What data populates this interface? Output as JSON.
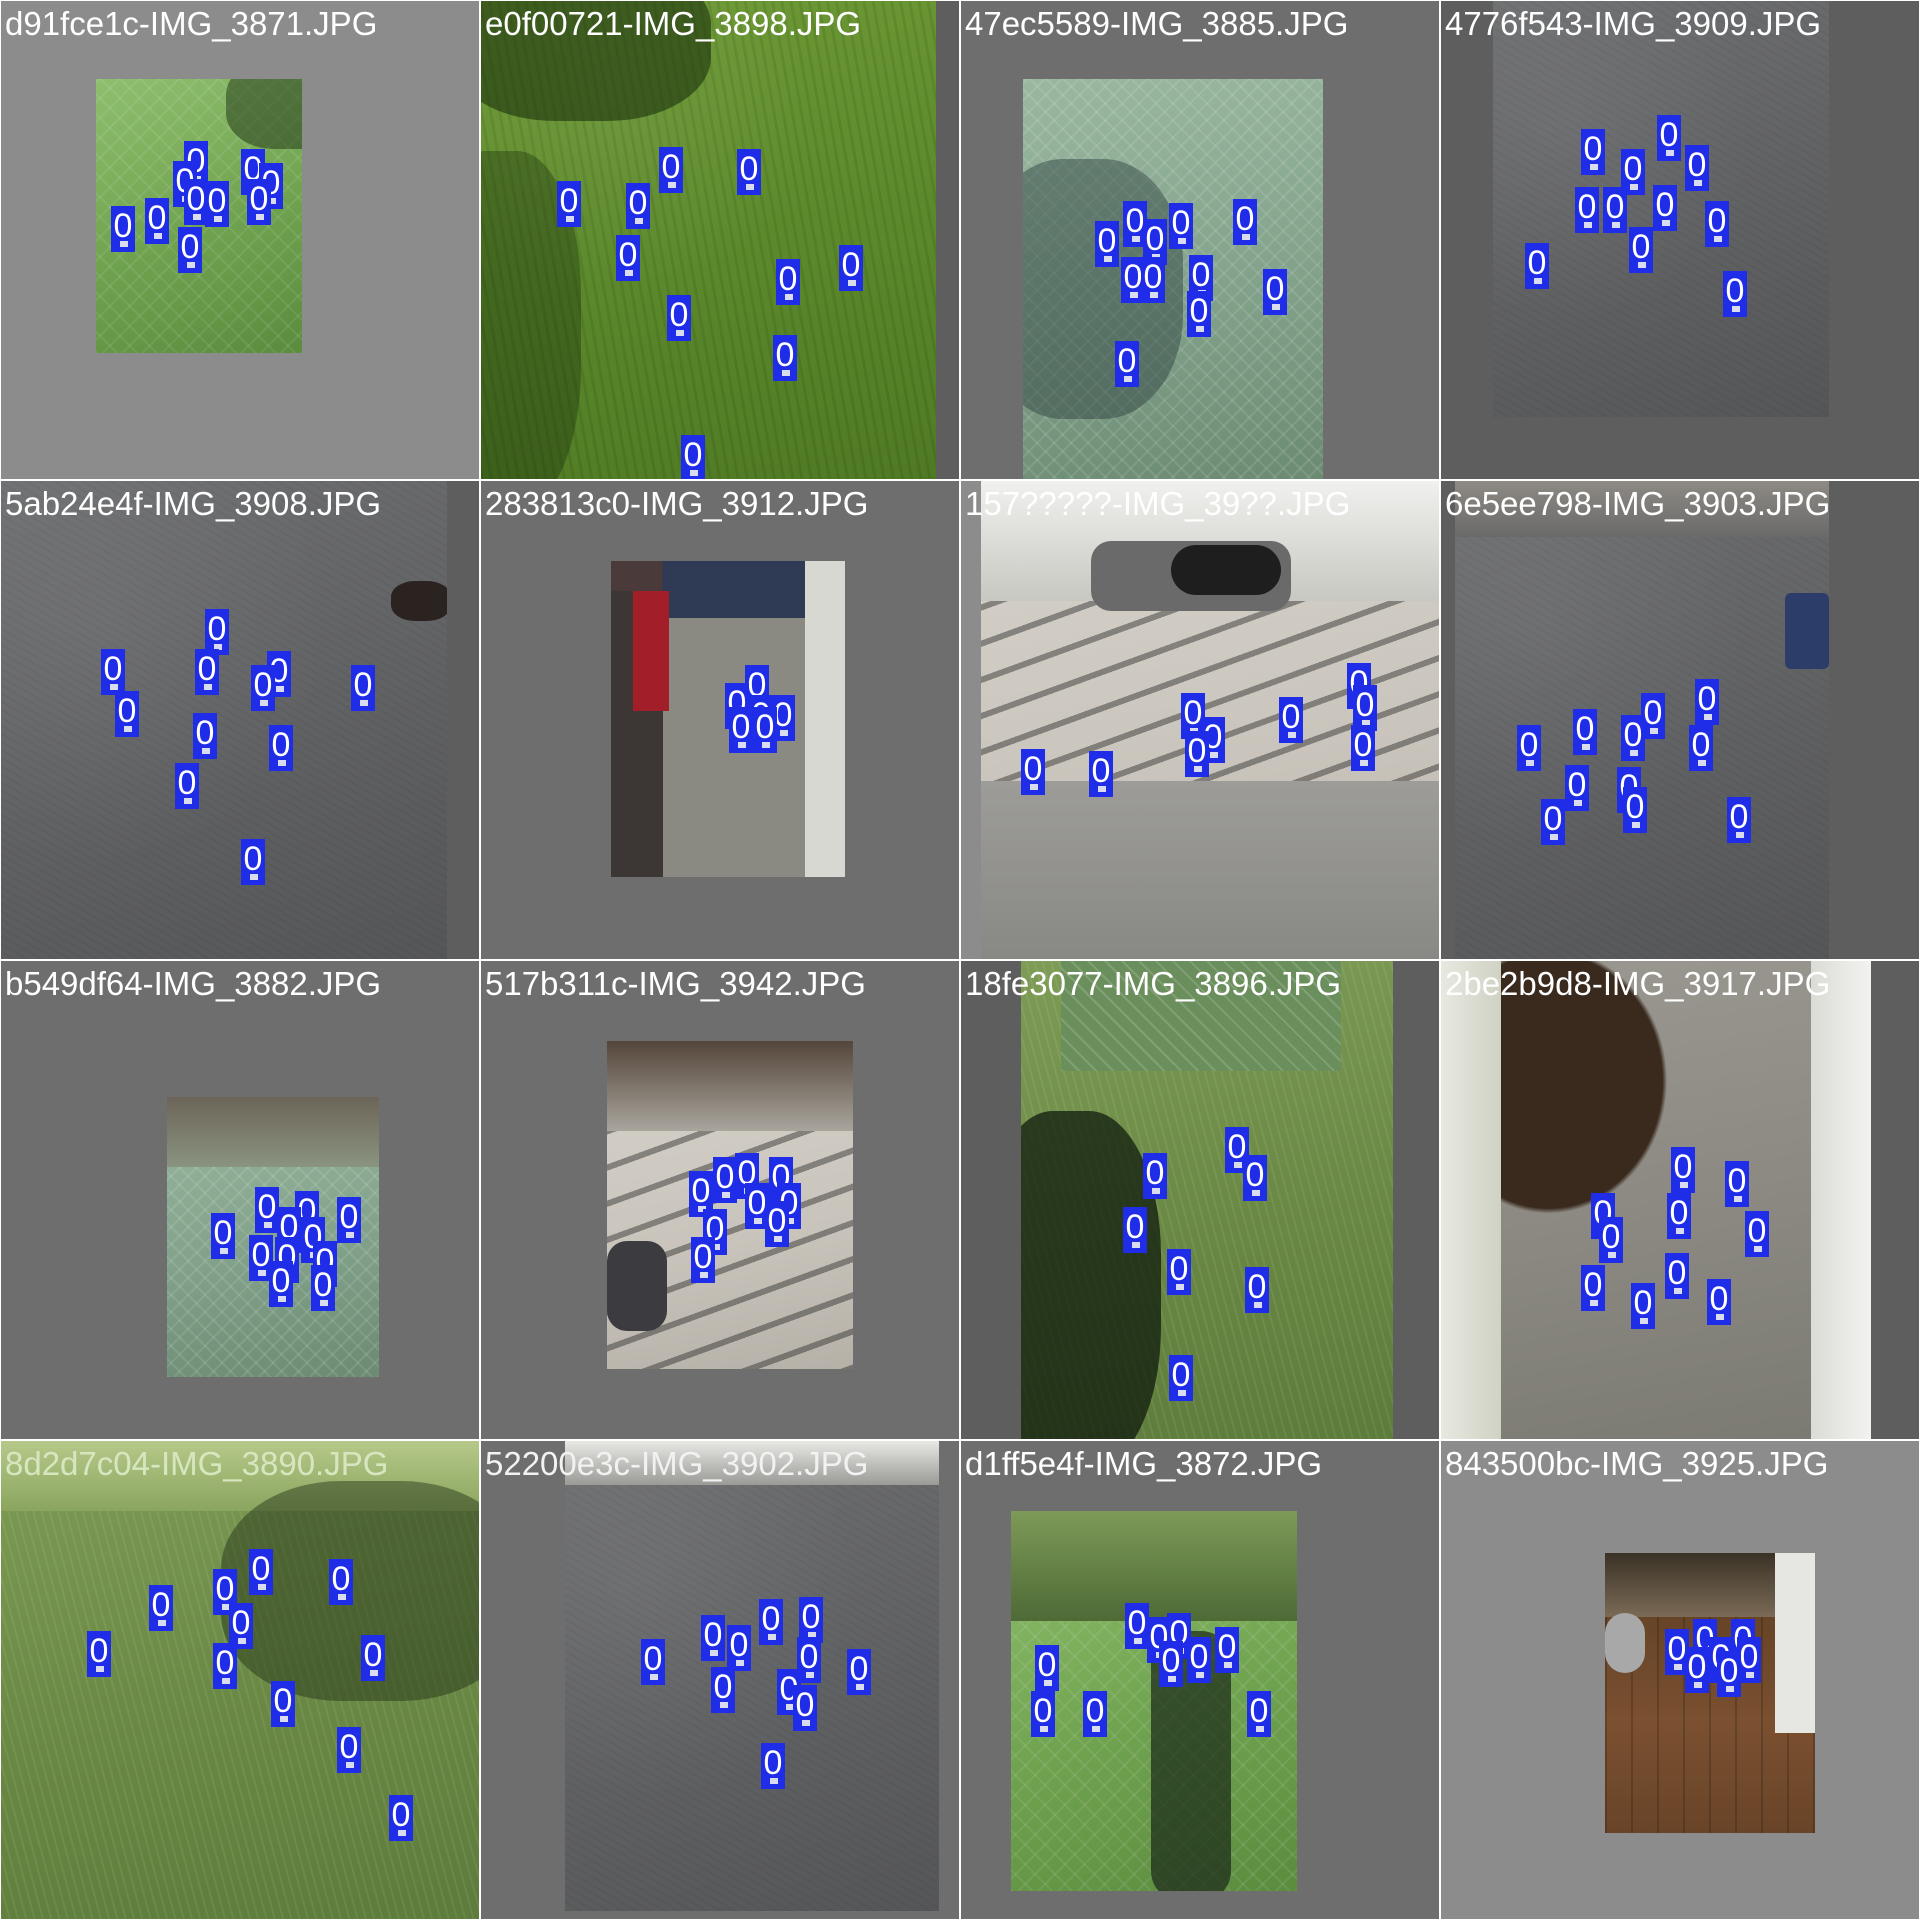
{
  "mosaic": {
    "tiles": [
      {
        "label": "d91fce1c-IMG_3871.JPG",
        "box_label": "0",
        "box_count": 12
      },
      {
        "label": "e0f00721-IMG_3898.JPG",
        "box_label": "0",
        "box_count": 12
      },
      {
        "label": "47ec5589-IMG_3885.JPG",
        "box_label": "0",
        "box_count": 14
      },
      {
        "label": "4776f543-IMG_3909.JPG",
        "box_label": "0",
        "box_count": 13
      },
      {
        "label": "5ab24e4f-IMG_3908.JPG",
        "box_label": "0",
        "box_count": 12
      },
      {
        "label": "283813c0-IMG_3912.JPG",
        "box_label": "0",
        "box_count": 10
      },
      {
        "label": "157?????-IMG_39??.JPG",
        "box_label": "0",
        "box_count": 12
      },
      {
        "label": "6e5ee798-IMG_3903.JPG",
        "box_label": "0",
        "box_count": 13
      },
      {
        "label": "b549df64-IMG_3882.JPG",
        "box_label": "0",
        "box_count": 14
      },
      {
        "label": "517b311c-IMG_3942.JPG",
        "box_label": "0",
        "box_count": 14
      },
      {
        "label": "18fe3077-IMG_3896.JPG",
        "box_label": "0",
        "box_count": 12
      },
      {
        "label": "2be2b9d8-IMG_3917.JPG",
        "box_label": "0",
        "box_count": 13
      },
      {
        "label": "8d2d7c04-IMG_3890.JPG",
        "box_label": "0",
        "box_count": 13
      },
      {
        "label": "52200e3c-IMG_3902.JPG",
        "box_label": "0",
        "box_count": 13
      },
      {
        "label": "d1ff5e4f-IMG_3872.JPG",
        "box_label": "0",
        "box_count": 12
      },
      {
        "label": "843500bc-IMG_3925.JPG",
        "box_label": "0",
        "box_count": 12
      }
    ],
    "colors": {
      "box": "#1f2ce8",
      "padding_light": "#8c8c8c",
      "padding_dark": "#6e6e6e",
      "label_text": "#ffffff"
    }
  }
}
